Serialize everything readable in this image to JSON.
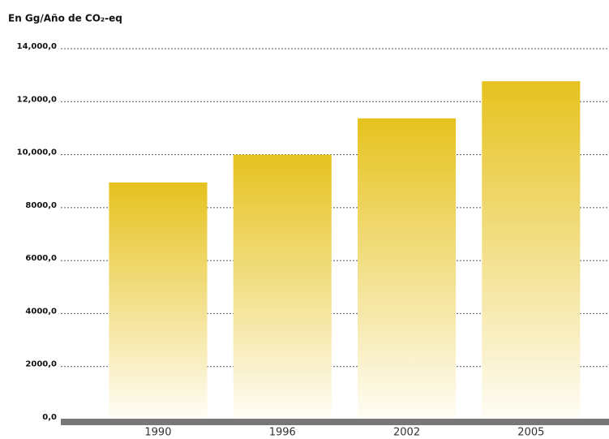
{
  "chart_data": {
    "type": "bar",
    "title": "En Gg/Año de CO₂-eq",
    "categories": [
      "1990",
      "1996",
      "2002",
      "2005"
    ],
    "values": [
      8950,
      10000,
      11370,
      12770
    ],
    "color": "#e6c21e",
    "ylim": [
      0,
      14000
    ],
    "yticks": [
      {
        "value": 0,
        "label": "0,0"
      },
      {
        "value": 2000,
        "label": "2000,0"
      },
      {
        "value": 4000,
        "label": "4000,0"
      },
      {
        "value": 6000,
        "label": "6000,0"
      },
      {
        "value": 8000,
        "label": "8000,0"
      },
      {
        "value": 10000,
        "label": "10,000,0"
      },
      {
        "value": 12000,
        "label": "12,000,0"
      },
      {
        "value": 14000,
        "label": "14,000,0"
      }
    ],
    "grid": true
  }
}
